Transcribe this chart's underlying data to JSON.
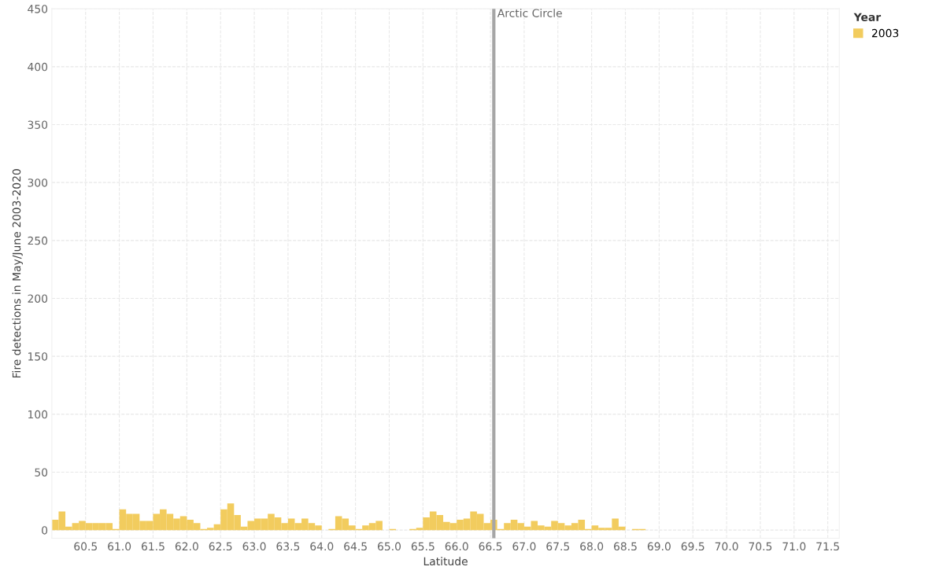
{
  "chart_data": {
    "type": "bar",
    "xlabel": "Latitude",
    "ylabel": "Fire detections in May/June 2003-2020",
    "legend_title": "Year",
    "legend": "top right",
    "grid": true,
    "x": [
      60.05,
      60.15,
      60.25,
      60.35,
      60.45,
      60.55,
      60.65,
      60.75,
      60.85,
      60.95,
      61.05,
      61.15,
      61.25,
      61.35,
      61.45,
      61.55,
      61.65,
      61.75,
      61.85,
      61.95,
      62.05,
      62.15,
      62.25,
      62.35,
      62.45,
      62.55,
      62.65,
      62.75,
      62.85,
      62.95,
      63.05,
      63.15,
      63.25,
      63.35,
      63.45,
      63.55,
      63.65,
      63.75,
      63.85,
      63.95,
      64.05,
      64.15,
      64.25,
      64.35,
      64.45,
      64.55,
      64.65,
      64.75,
      64.85,
      64.95,
      65.05,
      65.15,
      65.25,
      65.35,
      65.45,
      65.55,
      65.65,
      65.75,
      65.85,
      65.95,
      66.05,
      66.15,
      66.25,
      66.35,
      66.45,
      66.55,
      66.65,
      66.75,
      66.85,
      66.95,
      67.05,
      67.15,
      67.25,
      67.35,
      67.45,
      67.55,
      67.65,
      67.75,
      67.85,
      67.95,
      68.05,
      68.15,
      68.25,
      68.35,
      68.45,
      68.55,
      68.65,
      68.75
    ],
    "series": [
      {
        "name": "2003",
        "color": "#f2cc5e",
        "values": [
          9,
          16,
          3,
          6,
          8,
          6,
          6,
          6,
          6,
          1,
          18,
          14,
          14,
          8,
          8,
          14,
          18,
          14,
          10,
          12,
          9,
          6,
          1,
          2,
          5,
          18,
          23,
          13,
          3,
          8,
          10,
          10,
          14,
          11,
          6,
          10,
          6,
          10,
          6,
          4,
          null,
          1,
          12,
          10,
          4,
          1,
          4,
          6,
          8,
          null,
          1,
          null,
          null,
          1,
          2,
          11,
          16,
          13,
          7,
          6,
          9,
          10,
          16,
          14,
          6,
          9,
          1,
          6,
          9,
          6,
          3,
          8,
          4,
          3,
          8,
          6,
          4,
          6,
          9,
          1,
          4,
          2,
          2,
          10,
          3,
          null,
          1,
          1
        ]
      }
    ],
    "xlim": [
      60.0,
      71.67
    ],
    "xticks": [
      60.5,
      {
        "value": 61,
        "label": "61.0"
      },
      61.5,
      {
        "value": 62,
        "label": "62.0"
      },
      62.5,
      {
        "value": 63,
        "label": "63.0"
      },
      63.5,
      {
        "value": 64,
        "label": "64.0"
      },
      64.5,
      {
        "value": 65,
        "label": "65.0"
      },
      65.5,
      {
        "value": 66,
        "label": "66.0"
      },
      66.5,
      {
        "value": 67,
        "label": "67.0"
      },
      67.5,
      {
        "value": 68,
        "label": "68.0"
      },
      68.5,
      {
        "value": 69,
        "label": "69.0"
      },
      69.5,
      {
        "value": 70,
        "label": "70.0"
      },
      70.5,
      {
        "value": 71,
        "label": "71.0"
      },
      71.5
    ],
    "ylim": [
      -7,
      450
    ],
    "yticks": [
      0,
      50,
      100,
      150,
      200,
      250,
      300,
      350,
      400,
      450
    ],
    "ref_lines": [
      {
        "axis": "x",
        "value": 66.55,
        "label": "Arctic Circle",
        "color": "#a6a6a6"
      }
    ]
  }
}
